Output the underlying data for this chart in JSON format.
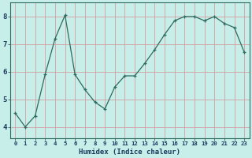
{
  "x": [
    0,
    1,
    2,
    3,
    4,
    5,
    6,
    7,
    8,
    9,
    10,
    11,
    12,
    13,
    14,
    15,
    16,
    17,
    18,
    19,
    20,
    21,
    22,
    23
  ],
  "y": [
    4.5,
    4.0,
    4.4,
    5.9,
    7.2,
    8.05,
    5.9,
    5.35,
    4.9,
    4.65,
    5.45,
    5.85,
    5.85,
    6.3,
    6.8,
    7.35,
    7.85,
    8.0,
    8.0,
    7.85,
    8.0,
    7.75,
    7.6,
    6.7
  ],
  "line_color": "#2d6b5e",
  "marker": "+",
  "marker_size": 3.5,
  "bg_color": "#c8eeea",
  "grid_color": "#d4a0a0",
  "text_color": "#1a3a5c",
  "xlabel": "Humidex (Indice chaleur)",
  "ylabel_ticks": [
    4,
    5,
    6,
    7,
    8
  ],
  "xlim": [
    -0.5,
    23.5
  ],
  "ylim": [
    3.6,
    8.5
  ]
}
